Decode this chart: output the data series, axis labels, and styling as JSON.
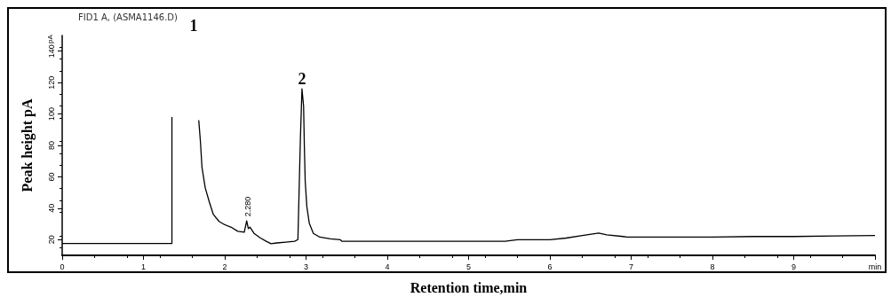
{
  "chart_data": {
    "type": "line",
    "subtitle": "FID1 A, (ASMA1146.D)",
    "xlabel": "Retention time,min",
    "ylabel": "Peak height pA",
    "annotations": [
      "1",
      {
        "text": "2",
        "x": 2.95,
        "y": 116
      },
      {
        "text": "2.280",
        "x": 2.28,
        "y": 32
      },
      "pA"
    ],
    "xlim": [
      0,
      10
    ],
    "xticks": [
      0,
      1,
      2,
      3,
      4,
      5,
      6,
      7,
      8,
      9,
      {
        "value": 10,
        "label": "min"
      }
    ],
    "ylim": [
      10,
      150
    ],
    "yticks": [
      20,
      40,
      60,
      80,
      100,
      120,
      140
    ],
    "grid": false,
    "marker": "none",
    "line_style": "solid",
    "series": [
      {
        "color": "#000000",
        "x": [
          0,
          1.35,
          1.35,
          1.36,
          1.67,
          1.68,
          1.7,
          1.72,
          1.76,
          1.81,
          1.86,
          1.93,
          2.0,
          2.08,
          2.16,
          2.24,
          2.27,
          2.29,
          2.31,
          2.36,
          2.44,
          2.51,
          2.57,
          2.64,
          2.75,
          2.86,
          2.9,
          2.93,
          2.95,
          2.97,
          2.98,
          2.99,
          3.01,
          3.04,
          3.09,
          3.17,
          3.3,
          3.42,
          3.44,
          4.0,
          5.0,
          5.45,
          5.6,
          6.0,
          6.2,
          6.4,
          6.6,
          6.7,
          6.9,
          6.95,
          7.0,
          8.0,
          8.5,
          9.0,
          9.5,
          10
        ],
        "values": [
          17.5,
          17.5,
          98,
          null,
          null,
          96,
          83,
          66,
          53,
          44,
          36,
          31.6,
          29.5,
          27.9,
          25.3,
          24.7,
          32,
          27,
          28,
          24,
          21,
          19,
          17.4,
          17.9,
          18.4,
          19,
          20,
          83,
          116,
          105,
          78,
          57,
          41,
          30.5,
          24,
          21.6,
          20.5,
          20,
          19,
          19,
          19,
          19,
          20,
          20,
          21,
          22.6,
          24.2,
          23,
          22,
          21.6,
          21.6,
          21.6,
          22,
          22,
          22.3,
          22.6
        ]
      }
    ]
  }
}
